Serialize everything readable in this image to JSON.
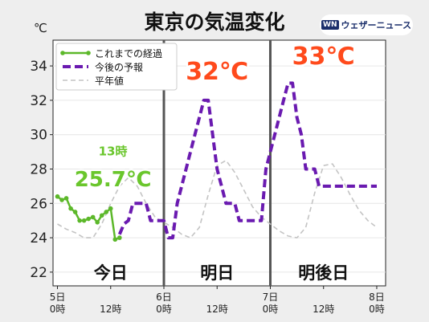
{
  "title": "東京の気温変化",
  "brand": {
    "mark": "WN",
    "label": "ウェザーニュース"
  },
  "chart_data": {
    "type": "line",
    "ylabel": "℃",
    "ylim": [
      21.2,
      35.5
    ],
    "xlim": [
      -1,
      74
    ],
    "y_ticks": [
      "22",
      "24",
      "26",
      "28",
      "30",
      "32",
      "34"
    ],
    "x_ticks": [
      {
        "x": 0,
        "line1": "5日",
        "line2": "0時"
      },
      {
        "x": 12,
        "line1": "",
        "line2": "12時"
      },
      {
        "x": 24,
        "line1": "6日",
        "line2": "0時"
      },
      {
        "x": 36,
        "line1": "",
        "line2": "12時"
      },
      {
        "x": 48,
        "line1": "7日",
        "line2": "0時"
      },
      {
        "x": 60,
        "line1": "",
        "line2": "12時"
      },
      {
        "x": 72,
        "line1": "8日",
        "line2": "0時"
      }
    ],
    "day_dividers": [
      24,
      48
    ],
    "day_labels": [
      {
        "x": 12,
        "text": "今日"
      },
      {
        "x": 36,
        "text": "明日"
      },
      {
        "x": 60,
        "text": "明後日"
      }
    ],
    "legend": {
      "position": "top-left",
      "entries": [
        "これまでの経過",
        "今後の予報",
        "平年値"
      ]
    },
    "annotations": [
      {
        "x": 12.5,
        "y": 28.8,
        "text": "13時",
        "color": "#6ac62c",
        "size": 15
      },
      {
        "x": 12.5,
        "y": 27.0,
        "text": "25.7℃",
        "color": "#6ac62c",
        "size": 26
      },
      {
        "x": 36,
        "y": 33.2,
        "text": "32℃",
        "color": "#ff4a1c",
        "size": 30
      },
      {
        "x": 60,
        "y": 34.1,
        "text": "33℃",
        "color": "#ff4a1c",
        "size": 30
      }
    ],
    "series": [
      {
        "name": "これまでの経過",
        "color": "#5cb82a",
        "style": "solid-markers",
        "x": [
          0,
          1,
          2,
          3,
          4,
          5,
          6,
          7,
          8,
          9,
          10,
          11,
          12,
          13,
          14
        ],
        "y": [
          26.4,
          26.2,
          26.3,
          25.7,
          25.5,
          25.0,
          25.0,
          25.1,
          25.2,
          24.9,
          25.3,
          25.5,
          25.7,
          23.9,
          24.0
        ]
      },
      {
        "name": "今後の予報",
        "color": "#6a1ab0",
        "style": "dashed",
        "x": [
          14,
          15,
          16,
          17,
          18,
          19,
          20,
          21,
          22,
          23,
          24,
          25,
          26,
          27,
          28,
          29,
          30,
          31,
          32,
          33,
          34,
          35,
          36,
          37,
          38,
          39,
          40,
          41,
          42,
          43,
          44,
          45,
          46,
          47,
          48,
          49,
          50,
          51,
          52,
          53,
          54,
          55,
          56,
          57,
          58,
          59,
          60,
          61,
          62,
          63,
          64,
          65,
          66,
          67,
          68,
          69,
          70,
          71,
          72
        ],
        "y": [
          24.2,
          24.8,
          25.0,
          26.0,
          26.0,
          26.0,
          26.0,
          25.0,
          25.0,
          25.0,
          25.0,
          24.0,
          24.0,
          26.0,
          27.0,
          28.0,
          29.0,
          30.0,
          31.0,
          32.0,
          32.0,
          30.0,
          28.0,
          27.0,
          26.0,
          26.0,
          26.0,
          25.0,
          25.0,
          25.0,
          25.0,
          25.0,
          25.0,
          28.0,
          29.0,
          30.0,
          31.0,
          32.0,
          33.0,
          33.0,
          31.0,
          30.0,
          28.0,
          28.0,
          28.0,
          27.0,
          27.0,
          27.0,
          27.0,
          27.0,
          27.0,
          27.0,
          27.0,
          27.0,
          27.0,
          27.0,
          27.0,
          27.0,
          27.0
        ]
      },
      {
        "name": "平年値",
        "color": "#c4c4c4",
        "style": "dashed-thin",
        "x": [
          0,
          2,
          4,
          6,
          8,
          10,
          12,
          14,
          16,
          18,
          20,
          22,
          24,
          26,
          28,
          30,
          32,
          34,
          36,
          38,
          40,
          42,
          44,
          46,
          48,
          50,
          52,
          54,
          56,
          58,
          60,
          62,
          64,
          66,
          68,
          70,
          72
        ],
        "y": [
          24.8,
          24.5,
          24.3,
          24.0,
          24.0,
          24.8,
          26.0,
          27.0,
          27.5,
          27.0,
          26.0,
          25.2,
          24.9,
          24.6,
          24.2,
          24.0,
          24.6,
          26.5,
          28.2,
          28.5,
          27.8,
          26.8,
          25.8,
          25.2,
          24.8,
          24.4,
          24.1,
          24.0,
          24.6,
          26.6,
          28.2,
          28.3,
          27.5,
          26.5,
          25.6,
          25.0,
          24.6
        ]
      }
    ]
  }
}
